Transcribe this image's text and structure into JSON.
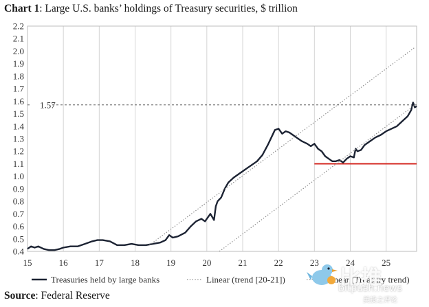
{
  "title": {
    "bold": "Chart 1",
    "rest": ": Large U.S. banks’ holdings of Treasury securities, $ trillion"
  },
  "source": {
    "bold": "Source",
    "rest": ": Federal Reserve"
  },
  "watermark": {
    "cn": "比推",
    "en": "bitpush.news",
    "sub": "美投之评论"
  },
  "colors": {
    "series": "#1c2333",
    "red_line": "#d6322b",
    "dotted": "#8a8a8a",
    "ref": "#555555"
  },
  "chart_data": {
    "type": "line",
    "title": "Large U.S. banks’ holdings of Treasury securities, $ trillion",
    "xlabel": "",
    "ylabel": "",
    "xlim": [
      15,
      25.85
    ],
    "ylim": [
      0.4,
      2.2
    ],
    "y_ticks": [
      "0.4",
      "0.5",
      "0.6",
      "0.7",
      "0.8",
      "0.9",
      "1.0",
      "1.1",
      "1.2",
      "1.3",
      "1.4",
      "1.5",
      "1.6",
      "1.7",
      "1.8",
      "1.9",
      "2.0",
      "2.1",
      "2.2"
    ],
    "x_ticks": [
      "15",
      "16",
      "17",
      "18",
      "19",
      "20",
      "21",
      "22",
      "23",
      "24",
      "25"
    ],
    "grid": "vertical",
    "legend_position": "bottom",
    "reference_line": {
      "value": 1.57,
      "label": "1.57"
    },
    "horizontal_level": {
      "value": 1.1,
      "x_start": 23.0,
      "x_end": 25.85
    },
    "series": [
      {
        "name": "Treasuries held by large banks",
        "style": "solid",
        "x": [
          15.0,
          15.1,
          15.2,
          15.3,
          15.45,
          15.6,
          15.75,
          15.9,
          16.0,
          16.2,
          16.4,
          16.6,
          16.8,
          16.95,
          17.1,
          17.3,
          17.5,
          17.7,
          17.9,
          18.1,
          18.3,
          18.5,
          18.7,
          18.85,
          18.95,
          19.05,
          19.2,
          19.4,
          19.55,
          19.7,
          19.85,
          19.95,
          20.1,
          20.2,
          20.25,
          20.3,
          20.4,
          20.5,
          20.6,
          20.75,
          20.9,
          21.0,
          21.1,
          21.25,
          21.4,
          21.55,
          21.7,
          21.85,
          21.9,
          22.0,
          22.1,
          22.2,
          22.3,
          22.4,
          22.5,
          22.65,
          22.8,
          22.9,
          23.0,
          23.1,
          23.2,
          23.3,
          23.4,
          23.5,
          23.6,
          23.7,
          23.8,
          23.9,
          24.0,
          24.1,
          24.15,
          24.2,
          24.3,
          24.4,
          24.55,
          24.7,
          24.85,
          25.0,
          25.15,
          25.3,
          25.45,
          25.6,
          25.7,
          25.75,
          25.8,
          25.85
        ],
        "y": [
          0.42,
          0.44,
          0.43,
          0.44,
          0.42,
          0.41,
          0.41,
          0.42,
          0.43,
          0.44,
          0.44,
          0.46,
          0.48,
          0.49,
          0.49,
          0.48,
          0.45,
          0.45,
          0.46,
          0.45,
          0.45,
          0.46,
          0.47,
          0.49,
          0.53,
          0.51,
          0.52,
          0.55,
          0.6,
          0.64,
          0.66,
          0.64,
          0.7,
          0.65,
          0.76,
          0.8,
          0.83,
          0.9,
          0.95,
          0.99,
          1.02,
          1.04,
          1.06,
          1.09,
          1.12,
          1.17,
          1.25,
          1.34,
          1.37,
          1.38,
          1.34,
          1.36,
          1.35,
          1.33,
          1.31,
          1.28,
          1.26,
          1.24,
          1.26,
          1.22,
          1.2,
          1.16,
          1.14,
          1.12,
          1.12,
          1.13,
          1.11,
          1.14,
          1.16,
          1.15,
          1.22,
          1.2,
          1.21,
          1.25,
          1.28,
          1.31,
          1.33,
          1.36,
          1.38,
          1.4,
          1.44,
          1.48,
          1.53,
          1.59,
          1.55,
          1.56
        ]
      },
      {
        "name": "Linear (trend [20-21])",
        "style": "dotted",
        "x": [
          18.4,
          25.8
        ],
        "y": [
          0.45,
          2.03
        ]
      },
      {
        "name": "Linear (Treasury trend)",
        "style": "dotted",
        "x": [
          20.35,
          25.8
        ],
        "y": [
          0.4,
          1.57
        ]
      }
    ]
  }
}
